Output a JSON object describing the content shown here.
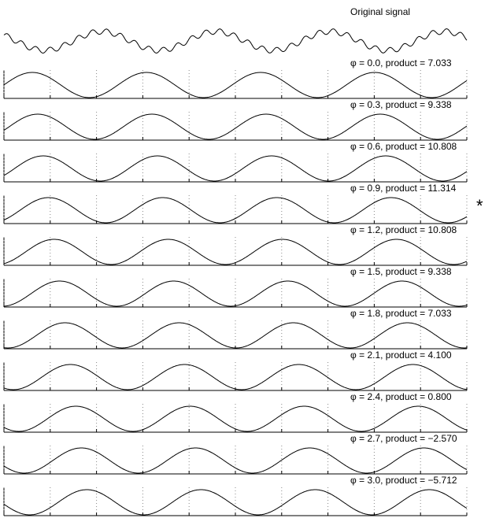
{
  "title": "Original signal",
  "panels": [
    {
      "label": "φ = 0.0, product = 7.033",
      "phi": 0.0
    },
    {
      "label": "φ = 0.3, product = 9.338",
      "phi": 0.3
    },
    {
      "label": "φ = 0.6, product = 10.808",
      "phi": 0.6
    },
    {
      "label": "φ = 0.9, product = 11.314",
      "phi": 0.9,
      "marker": "*"
    },
    {
      "label": "φ = 1.2, product = 10.808",
      "phi": 1.2
    },
    {
      "label": "φ = 1.5, product = 9.338",
      "phi": 1.5
    },
    {
      "label": "φ = 1.8, product = 7.033",
      "phi": 1.8
    },
    {
      "label": "φ = 2.1, product = 4.100",
      "phi": 2.1
    },
    {
      "label": "φ = 2.4, product = 0.800",
      "phi": 2.4
    },
    {
      "label": "φ = 2.7, product = −2.570",
      "phi": 2.7
    },
    {
      "label": "φ = 3.0, product = −5.712",
      "phi": 3.0
    }
  ]
}
